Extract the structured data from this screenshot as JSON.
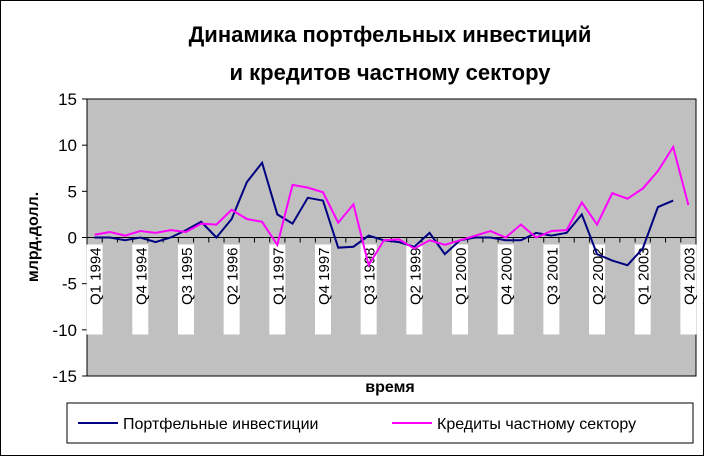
{
  "chart_data": {
    "type": "line",
    "title": [
      "Динамика портфельных инвестиций",
      "и кредитов частному сектору"
    ],
    "x_label": "время",
    "y_label": "млрд.долл.",
    "categories": [
      "Q1 1994",
      null,
      null,
      "Q4 1994",
      null,
      null,
      "Q3 1995",
      null,
      null,
      "Q2 1996",
      null,
      null,
      "Q1 1997",
      null,
      null,
      "Q4 1997",
      null,
      null,
      "Q3 1998",
      null,
      null,
      "Q2 1999",
      null,
      null,
      "Q1 2000",
      null,
      null,
      "Q4 2000",
      null,
      null,
      "Q3 2001",
      null,
      null,
      "Q2 2002",
      null,
      null,
      "Q1 2003",
      null,
      null,
      "Q4 2003"
    ],
    "series": [
      {
        "name": "Портфельные инвестиции",
        "color": "#000080",
        "values": [
          0,
          0,
          -0.3,
          0,
          -0.5,
          0,
          0.8,
          1.7,
          0,
          2,
          6,
          8.1,
          2.5,
          1.5,
          4.3,
          4,
          -1.1,
          -1,
          0.2,
          -0.3,
          -0.5,
          -1,
          0.5,
          -1.8,
          -0.3,
          0,
          0,
          -0.3,
          -0.3,
          0.5,
          0.2,
          0.5,
          2.5,
          -1.8,
          -2.5,
          -3,
          -1.2,
          3.3,
          4,
          null
        ]
      },
      {
        "name": "Кредиты частному сектору",
        "color": "#ff00ff",
        "values": [
          0.3,
          0.6,
          0.2,
          0.7,
          0.5,
          0.8,
          0.6,
          1.5,
          1.4,
          3,
          2,
          1.7,
          -0.8,
          5.7,
          5.4,
          4.9,
          1.6,
          3.6,
          -3,
          -0.3,
          -0.2,
          -1.2,
          -0.3,
          -0.8,
          -0.3,
          0.2,
          0.7,
          0,
          1.4,
          0,
          0.7,
          0.8,
          3.8,
          1.4,
          4.8,
          4.2,
          5.3,
          7.2,
          9.8,
          3.5
        ]
      }
    ],
    "ylim": [
      -15,
      15
    ],
    "yticks": [
      -15,
      -10,
      -5,
      0,
      5,
      10,
      15
    ],
    "plot_color": "#c0c0c0"
  }
}
